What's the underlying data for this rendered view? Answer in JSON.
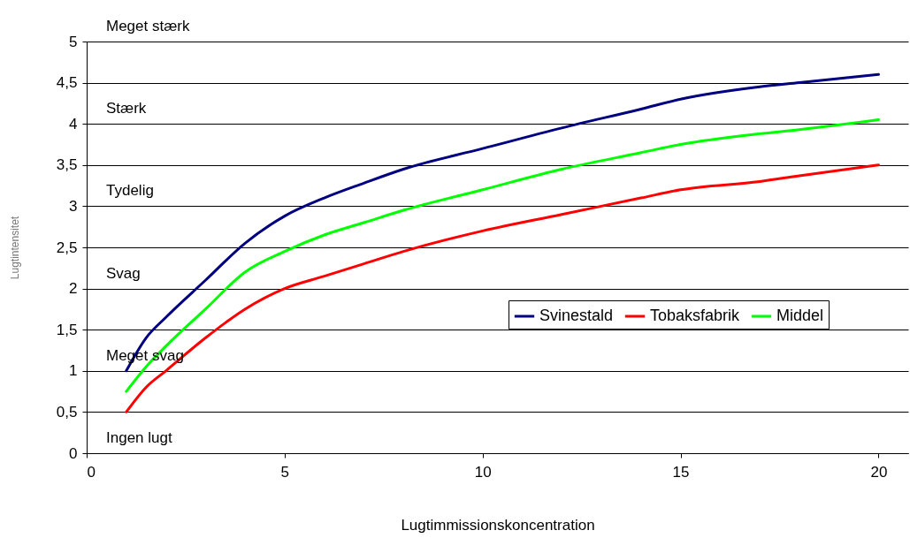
{
  "chart_data": {
    "type": "line",
    "xlabel": "Lugtimmissionskoncentration",
    "ylabel": "Lugtintensitet",
    "xlim": [
      0,
      20.75
    ],
    "xticks": [
      0,
      5,
      10,
      15,
      20
    ],
    "ylim": [
      0,
      5
    ],
    "yticks": [
      0,
      {
        "value": 0.5,
        "label": "0,5"
      },
      1,
      {
        "value": 1.5,
        "label": "1,5"
      },
      2,
      {
        "value": 2.5,
        "label": "2,5"
      },
      3,
      {
        "value": 3.5,
        "label": "3,5"
      },
      4,
      {
        "value": 4.5,
        "label": "4,5"
      },
      5
    ],
    "grid": "y",
    "legend": "right",
    "marker": "none",
    "line_style": "solid",
    "x": [
      1,
      1.5,
      2,
      3,
      4,
      5,
      6,
      7,
      8,
      10,
      12,
      14,
      15,
      17,
      18,
      20
    ],
    "series": [
      {
        "name": "Svinestald",
        "color": "#000080",
        "values": [
          1.0,
          1.4,
          1.65,
          2.1,
          2.55,
          2.88,
          3.1,
          3.28,
          3.45,
          3.7,
          3.95,
          4.18,
          4.3,
          4.45,
          4.5,
          4.6
        ]
      },
      {
        "name": "Tobaksfabrik",
        "color": "#ff0000",
        "values": [
          0.5,
          0.8,
          1.0,
          1.4,
          1.75,
          2.0,
          2.15,
          2.3,
          2.45,
          2.7,
          2.9,
          3.1,
          3.2,
          3.3,
          3.37,
          3.5
        ]
      },
      {
        "name": "Middel",
        "color": "#00ff00",
        "values": [
          0.75,
          1.05,
          1.3,
          1.75,
          2.2,
          2.45,
          2.65,
          2.8,
          2.95,
          3.2,
          3.45,
          3.65,
          3.75,
          3.88,
          3.93,
          4.05
        ]
      }
    ],
    "annotations": [
      "Meget stærk",
      "Stærk",
      "Tydelig",
      "Svag",
      "Meget svag",
      "Ingen lugt"
    ]
  }
}
